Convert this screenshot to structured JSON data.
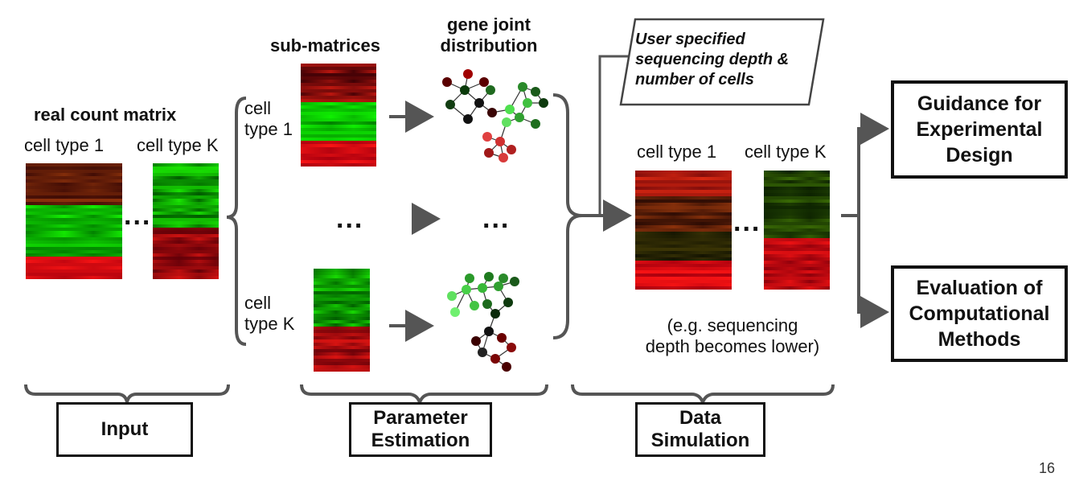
{
  "input_section": {
    "title": "real count matrix",
    "cell_type_1": "cell type 1",
    "cell_type_k": "cell type K",
    "ellipsis": "...",
    "label": "Input"
  },
  "parameter_section": {
    "submatrices_title": "sub-matrices",
    "gene_joint_title_line1": "gene joint",
    "gene_joint_title_line2": "distribution",
    "cell_type_1_line1": "cell",
    "cell_type_1_line2": "type 1",
    "cell_type_k_line1": "cell",
    "cell_type_k_line2": "type K",
    "ellipsis_left": "...",
    "ellipsis_right": "...",
    "label_line1": "Parameter",
    "label_line2": "Estimation"
  },
  "simulation_section": {
    "user_note_line1": "User specified",
    "user_note_line2": "sequencing depth &",
    "user_note_line3": "number of cells",
    "cell_type_1": "cell type 1",
    "cell_type_k": "cell type K",
    "ellipsis": "...",
    "example_line1": "(e.g. sequencing",
    "example_line2": "depth becomes lower)",
    "label_line1": "Data",
    "label_line2": "Simulation"
  },
  "outputs": {
    "guidance_line1": "Guidance for",
    "guidance_line2": "Experimental",
    "guidance_line3": "Design",
    "evaluation_line1": "Evaluation of",
    "evaluation_line2": "Computational",
    "evaluation_line3": "Methods"
  },
  "page_number": "16",
  "colors": {
    "green": "#1faa1f",
    "red": "#cc1a1a",
    "arrow": "#555555"
  }
}
